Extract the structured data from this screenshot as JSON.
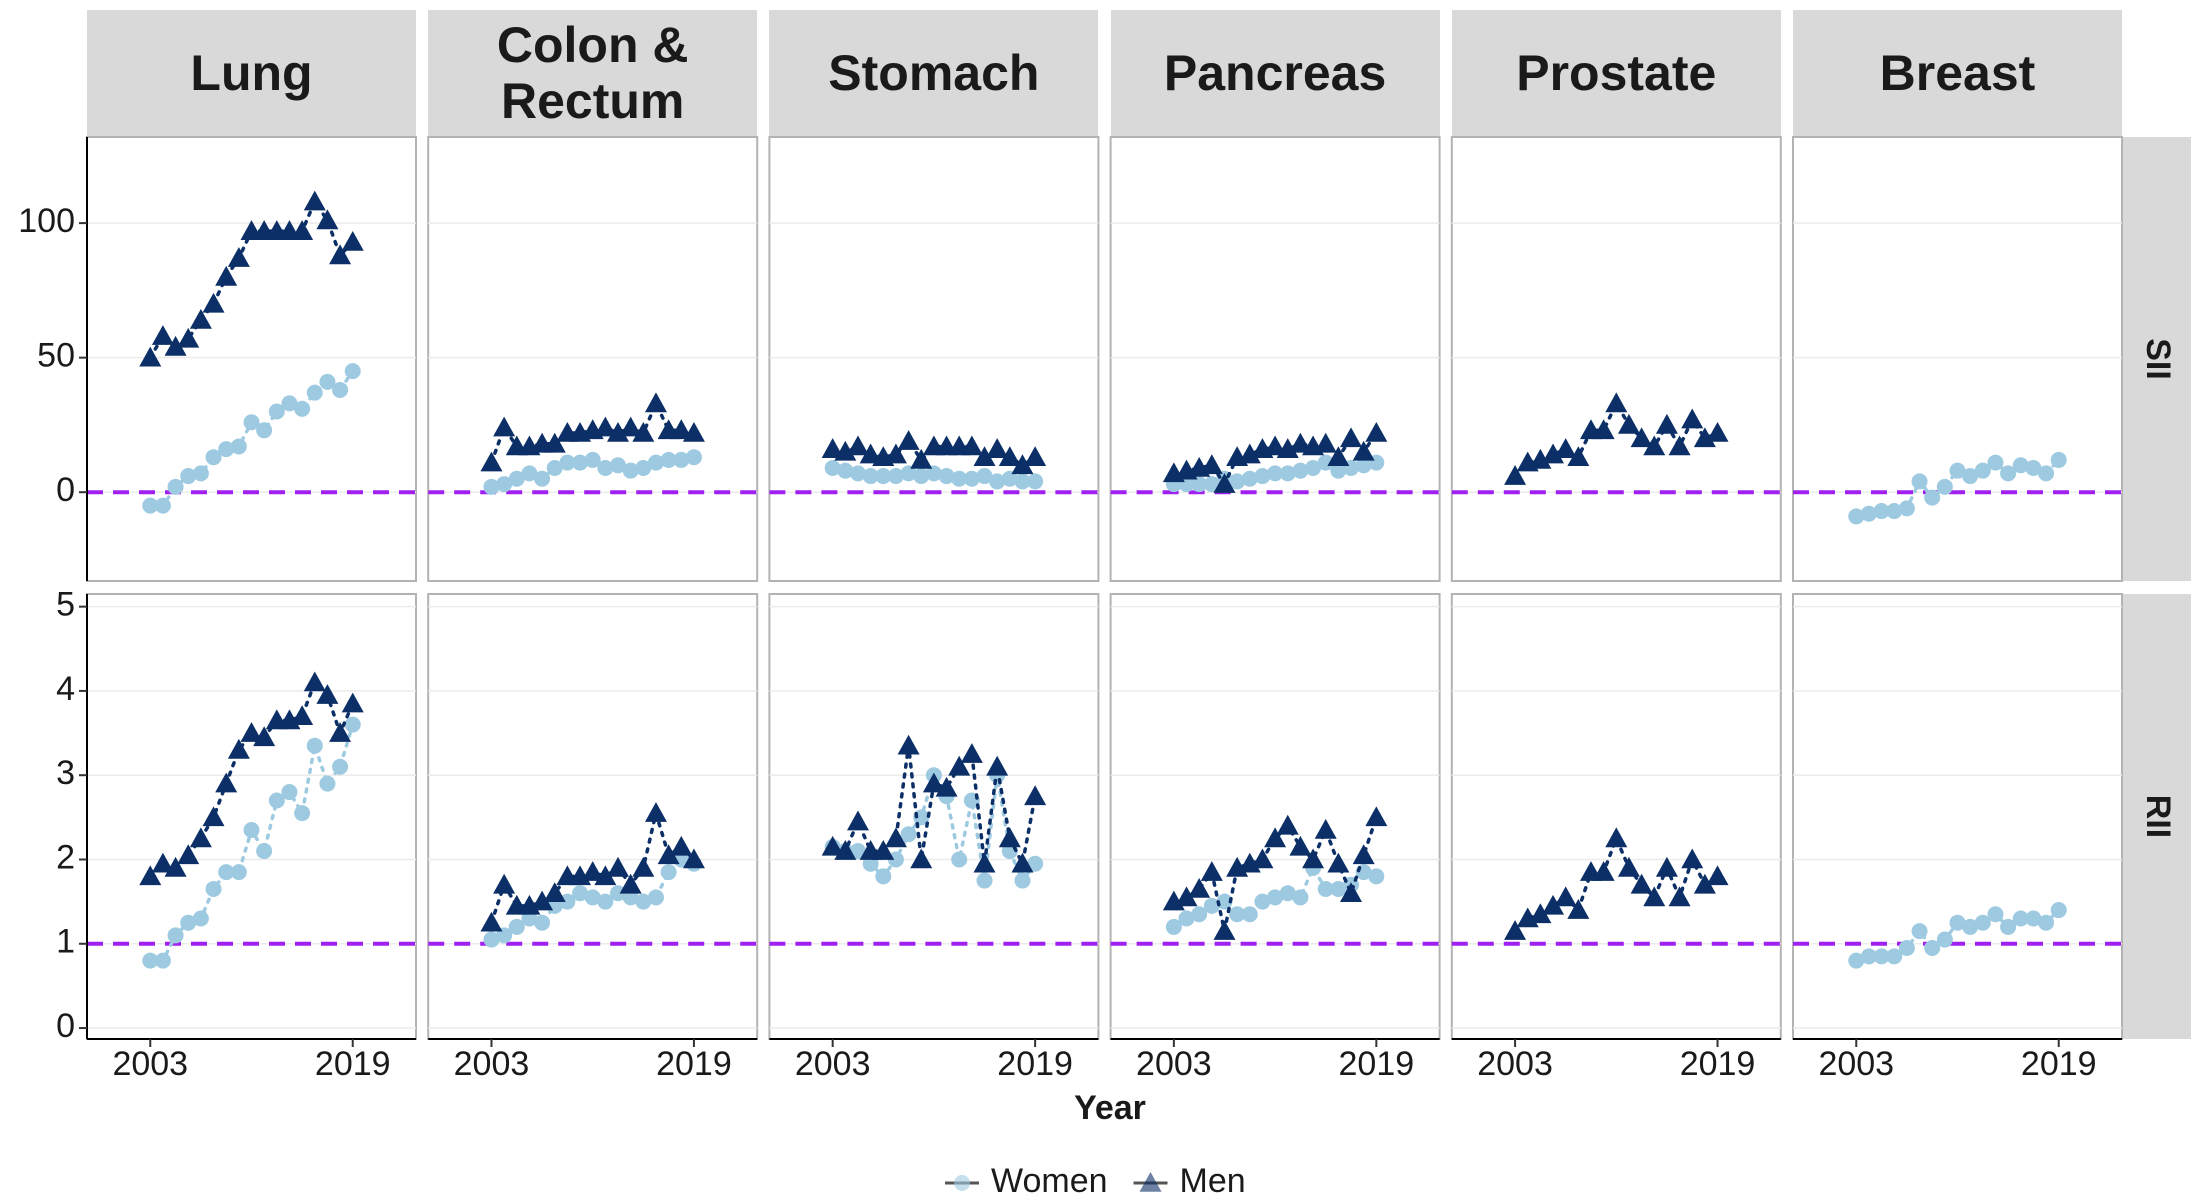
{
  "chart_data": {
    "type": "scatter",
    "x_label": "Year",
    "x": [
      2003,
      2004,
      2005,
      2006,
      2007,
      2008,
      2009,
      2010,
      2011,
      2012,
      2013,
      2014,
      2015,
      2016,
      2017,
      2018,
      2019
    ],
    "xlim": [
      1998,
      2024
    ],
    "xticks": [
      2003,
      2019
    ],
    "legend": [
      {
        "name": "Women",
        "color": "#9ecae1",
        "marker": "circle"
      },
      {
        "name": "Men",
        "color": "#0b2f66",
        "marker": "triangle"
      }
    ],
    "columns": [
      "Lung",
      "Colon & Rectum",
      "Stomach",
      "Pancreas",
      "Prostate",
      "Breast"
    ],
    "reference_color": "#a020f0",
    "rows": [
      {
        "label": "SII",
        "ylim": [
          -33,
          132
        ],
        "yticks": [
          0,
          50,
          100
        ],
        "reference": 0,
        "panels": [
          {
            "series": [
              [
                -5,
                -5,
                2,
                6,
                7,
                13,
                16,
                17,
                26,
                23,
                30,
                33,
                31,
                37,
                41,
                38,
                45
              ],
              [
                50,
                58,
                54,
                57,
                64,
                70,
                80,
                87,
                97,
                97,
                97,
                97,
                97,
                108,
                101,
                88,
                93
              ]
            ]
          },
          {
            "series": [
              [
                2,
                3,
                5,
                7,
                5,
                9,
                11,
                11,
                12,
                9,
                10,
                8,
                9,
                11,
                12,
                12,
                13
              ],
              [
                11,
                24,
                17,
                17,
                18,
                18,
                22,
                22,
                23,
                24,
                22,
                24,
                22,
                33,
                23,
                23,
                22
              ]
            ]
          },
          {
            "series": [
              [
                9,
                8,
                7,
                6,
                6,
                6,
                7,
                6,
                7,
                6,
                5,
                5,
                6,
                4,
                5,
                4,
                4
              ],
              [
                16,
                15,
                17,
                14,
                13,
                14,
                19,
                12,
                17,
                17,
                17,
                17,
                13,
                16,
                13,
                10,
                13
              ]
            ]
          },
          {
            "series": [
              [
                3,
                3,
                3,
                3,
                5,
                4,
                5,
                6,
                7,
                7,
                8,
                9,
                11,
                8,
                9,
                10,
                11
              ],
              [
                7,
                8,
                9,
                10,
                3,
                13,
                14,
                16,
                17,
                16,
                18,
                17,
                18,
                13,
                20,
                15,
                22
              ]
            ]
          },
          {
            "series": [
              null,
              [
                6,
                11,
                12,
                14,
                16,
                13,
                23,
                23,
                33,
                25,
                20,
                17,
                25,
                17,
                27,
                20,
                22
              ]
            ]
          },
          {
            "series": [
              [
                -9,
                -8,
                -7,
                -7,
                -6,
                4,
                -2,
                2,
                8,
                6,
                8,
                11,
                7,
                10,
                9,
                7,
                12
              ],
              null
            ]
          }
        ]
      },
      {
        "label": "RII",
        "ylim": [
          -0.13,
          5.15
        ],
        "yticks": [
          0,
          1,
          2,
          3,
          4,
          5
        ],
        "reference": 1,
        "panels": [
          {
            "series": [
              [
                0.8,
                0.8,
                1.1,
                1.25,
                1.3,
                1.65,
                1.85,
                1.85,
                2.35,
                2.1,
                2.7,
                2.8,
                2.55,
                3.35,
                2.9,
                3.1,
                3.6
              ],
              [
                1.8,
                1.95,
                1.9,
                2.05,
                2.25,
                2.5,
                2.9,
                3.3,
                3.5,
                3.45,
                3.65,
                3.65,
                3.7,
                4.1,
                3.95,
                3.5,
                3.85
              ]
            ]
          },
          {
            "series": [
              [
                1.05,
                1.1,
                1.2,
                1.3,
                1.25,
                1.45,
                1.5,
                1.6,
                1.55,
                1.5,
                1.6,
                1.55,
                1.5,
                1.55,
                1.85,
                2.0,
                1.95
              ],
              [
                1.25,
                1.7,
                1.45,
                1.45,
                1.5,
                1.6,
                1.8,
                1.8,
                1.85,
                1.8,
                1.9,
                1.7,
                1.9,
                2.55,
                2.05,
                2.15,
                2.0
              ]
            ]
          },
          {
            "series": [
              [
                2.15,
                2.1,
                2.1,
                1.95,
                1.8,
                2.0,
                2.3,
                2.5,
                3.0,
                2.75,
                2.0,
                2.7,
                1.75,
                3.0,
                2.1,
                1.75,
                1.95
              ],
              [
                2.15,
                2.1,
                2.45,
                2.1,
                2.1,
                2.25,
                3.35,
                2.0,
                2.9,
                2.85,
                3.1,
                3.25,
                1.95,
                3.1,
                2.25,
                1.95,
                2.75
              ]
            ]
          },
          {
            "series": [
              [
                1.2,
                1.3,
                1.35,
                1.45,
                1.5,
                1.35,
                1.35,
                1.5,
                1.55,
                1.6,
                1.55,
                1.9,
                1.65,
                1.65,
                1.7,
                1.85,
                1.8
              ],
              [
                1.5,
                1.55,
                1.65,
                1.85,
                1.15,
                1.9,
                1.95,
                2.0,
                2.25,
                2.4,
                2.15,
                2.0,
                2.35,
                1.95,
                1.6,
                2.05,
                2.5
              ]
            ]
          },
          {
            "series": [
              null,
              [
                1.15,
                1.3,
                1.35,
                1.45,
                1.55,
                1.4,
                1.85,
                1.85,
                2.25,
                1.9,
                1.7,
                1.55,
                1.9,
                1.55,
                2.0,
                1.7,
                1.8
              ]
            ]
          },
          {
            "series": [
              [
                0.8,
                0.85,
                0.85,
                0.85,
                0.95,
                1.15,
                0.95,
                1.05,
                1.25,
                1.2,
                1.25,
                1.35,
                1.2,
                1.3,
                1.3,
                1.25,
                1.4
              ],
              null
            ]
          }
        ]
      }
    ]
  }
}
